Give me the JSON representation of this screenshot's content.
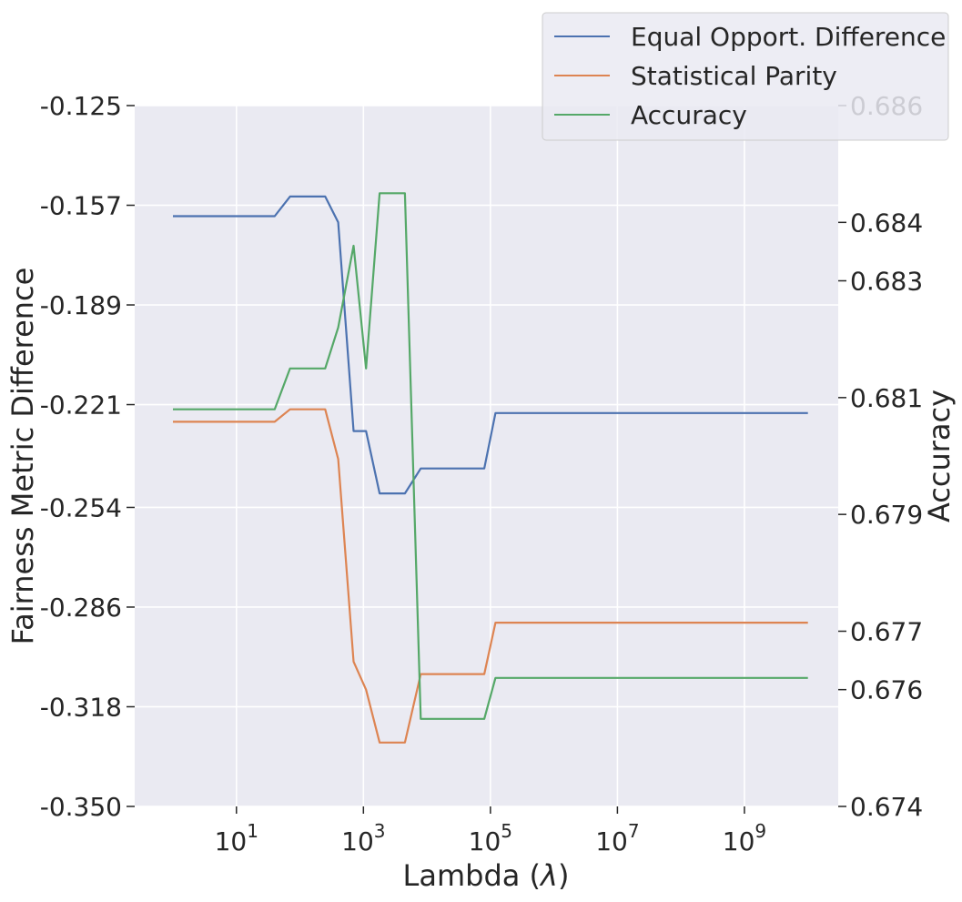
{
  "chart_data": {
    "type": "line",
    "title": "",
    "xlabel": "Lambda (λ)",
    "xlabel_prefix": "Lambda (",
    "xlabel_symbol": "λ",
    "xlabel_suffix": ")",
    "ylabel_left": "Fairness Metric Difference",
    "ylabel_right": "Accuracy",
    "x_scale": "log",
    "xlim": [
      0.25,
      30000000000
    ],
    "x_ticks": [
      {
        "base": "10",
        "exp": "1",
        "value": 10
      },
      {
        "base": "10",
        "exp": "3",
        "value": 1000
      },
      {
        "base": "10",
        "exp": "5",
        "value": 100000
      },
      {
        "base": "10",
        "exp": "7",
        "value": 10000000
      },
      {
        "base": "10",
        "exp": "9",
        "value": 1000000000
      }
    ],
    "ylim_left": [
      -0.35,
      -0.125
    ],
    "y_ticks_left": [
      {
        "label": "-0.125",
        "value": -0.125
      },
      {
        "label": "-0.157",
        "value": -0.157
      },
      {
        "label": "-0.189",
        "value": -0.189
      },
      {
        "label": "-0.221",
        "value": -0.221
      },
      {
        "label": "-0.254",
        "value": -0.254
      },
      {
        "label": "-0.286",
        "value": -0.286
      },
      {
        "label": "-0.318",
        "value": -0.318
      },
      {
        "label": "-0.350",
        "value": -0.35
      }
    ],
    "ylim_right": [
      0.674,
      0.686
    ],
    "y_ticks_right": [
      {
        "label": "0.686",
        "value": 0.686
      },
      {
        "label": "0.684",
        "value": 0.684
      },
      {
        "label": "0.683",
        "value": 0.683
      },
      {
        "label": "0.681",
        "value": 0.681
      },
      {
        "label": "0.679",
        "value": 0.679
      },
      {
        "label": "0.677",
        "value": 0.677
      },
      {
        "label": "0.676",
        "value": 0.676
      },
      {
        "label": "0.674",
        "value": 0.674
      }
    ],
    "grid": true,
    "legend_position": "top-right",
    "series": [
      {
        "name": "Equal Opport. Difference",
        "axis": "left",
        "color": "#4c72b0",
        "x": [
          1,
          40,
          70,
          250,
          400,
          700,
          1100,
          1800,
          4500,
          8000,
          80000,
          120000,
          10000000000
        ],
        "y": [
          -0.1605,
          -0.1605,
          -0.1542,
          -0.1542,
          -0.1625,
          -0.2295,
          -0.2295,
          -0.2495,
          -0.2495,
          -0.2415,
          -0.2415,
          -0.2237,
          -0.2237
        ]
      },
      {
        "name": "Statistical Parity",
        "axis": "left",
        "color": "#dd8452",
        "x": [
          1,
          40,
          70,
          250,
          400,
          700,
          1100,
          1800,
          4500,
          8000,
          80000,
          120000,
          10000000000
        ],
        "y": [
          -0.2265,
          -0.2265,
          -0.2225,
          -0.2225,
          -0.2385,
          -0.3035,
          -0.3125,
          -0.3295,
          -0.3295,
          -0.3075,
          -0.3075,
          -0.291,
          -0.291
        ]
      },
      {
        "name": "Accuracy",
        "axis": "right",
        "color": "#55a868",
        "x": [
          1,
          40,
          70,
          250,
          400,
          700,
          1100,
          1800,
          4500,
          8000,
          80000,
          120000,
          10000000000
        ],
        "y": [
          0.6808,
          0.6808,
          0.6815,
          0.6815,
          0.6822,
          0.6836,
          0.6815,
          0.6845,
          0.6845,
          0.6755,
          0.6755,
          0.6762,
          0.6762
        ]
      }
    ]
  }
}
